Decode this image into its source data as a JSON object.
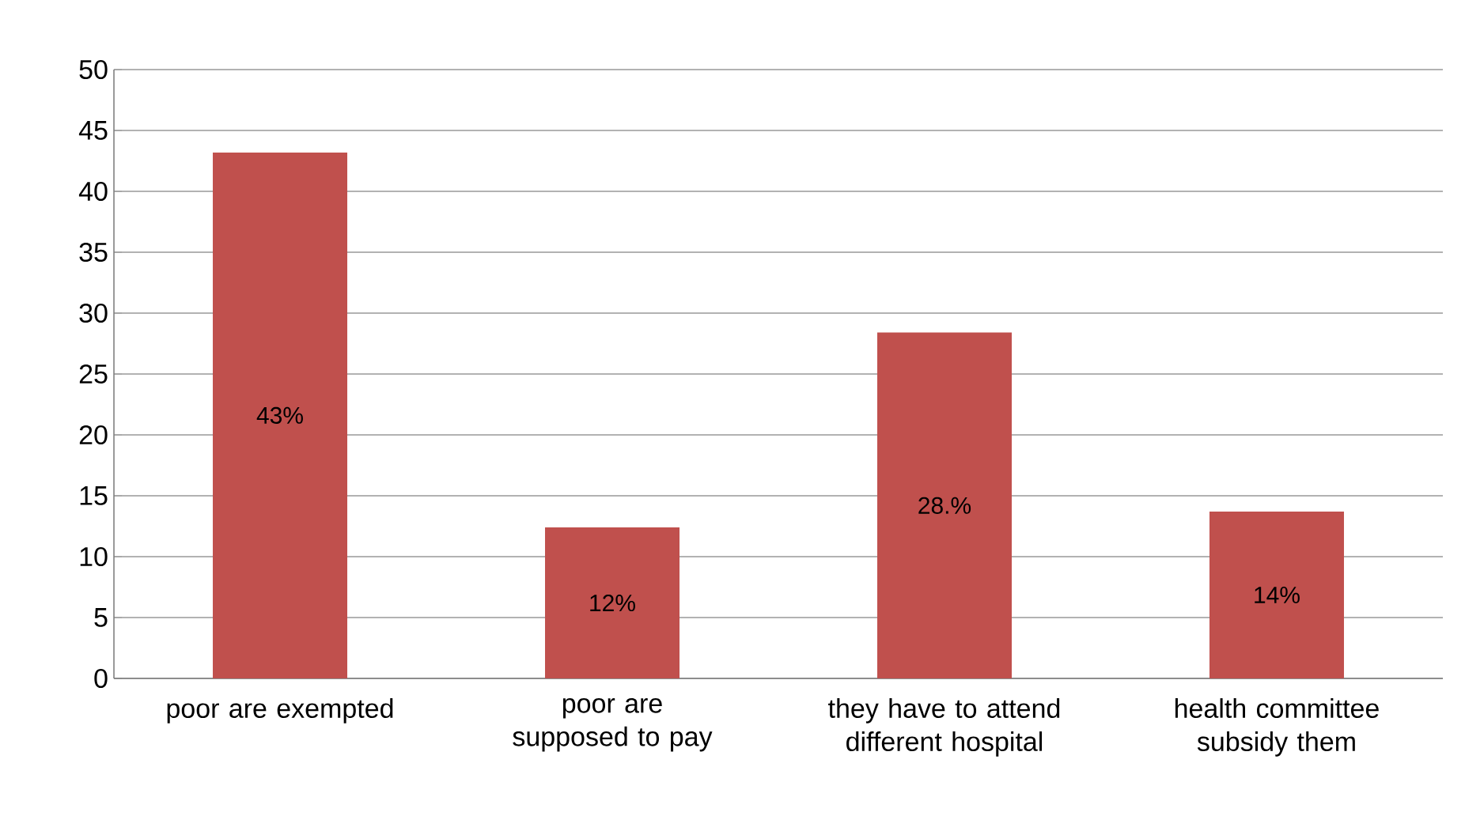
{
  "chart_data": {
    "type": "bar",
    "categories": [
      "poor are exempted",
      "poor are supposed to pay",
      "they have to attend different hospital",
      "health committee subsidy them"
    ],
    "values": [
      43.2,
      12.4,
      28.4,
      13.7
    ],
    "value_labels": [
      "43%",
      "12%",
      "28.%",
      "14%"
    ],
    "color": "#c0504d",
    "ylim": [
      0,
      50
    ],
    "yticks": [
      0,
      5,
      10,
      15,
      20,
      25,
      30,
      35,
      40,
      45,
      50
    ],
    "grid": "y",
    "legend": false
  }
}
